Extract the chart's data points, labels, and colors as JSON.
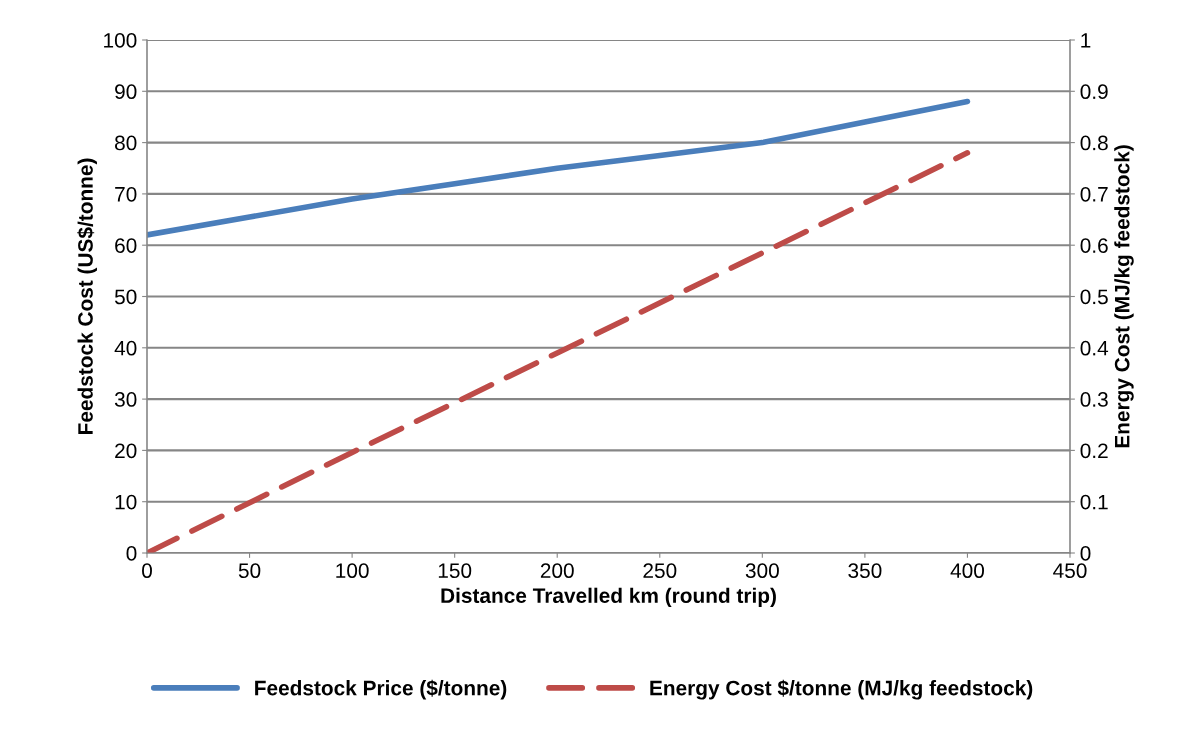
{
  "chart_data": {
    "type": "line",
    "xlabel": "Distance Travelled km (round trip)",
    "ylabel": "Feedstock Cost (US$/tonne)",
    "y2label": "Energy Cost (MJ/kg feedstock)",
    "series": [
      {
        "name": "Feedstock Price ($/tonne)",
        "color": "#4a7ebb",
        "x": [
          0,
          50,
          100,
          150,
          200,
          250,
          300,
          350,
          400
        ],
        "values": [
          62,
          65.5,
          69,
          72,
          75,
          77.5,
          80,
          84,
          88
        ],
        "line_style": "solid"
      },
      {
        "name": "Energy Cost $/tonne (MJ/kg feedstock)",
        "color": "#be4b48",
        "x": [
          0,
          100,
          200,
          300,
          400
        ],
        "values": [
          0,
          0.196,
          0.39,
          0.585,
          0.78
        ],
        "axis": "y2",
        "line_style": "dashed"
      }
    ],
    "xlim": [
      0,
      450
    ],
    "xticks": [
      0,
      50,
      100,
      150,
      200,
      250,
      300,
      350,
      400,
      450
    ],
    "ylim": [
      0,
      100
    ],
    "yticks": [
      0,
      10,
      20,
      30,
      40,
      50,
      60,
      70,
      80,
      90,
      100
    ],
    "y2lim": [
      0,
      1
    ],
    "y2ticks": [
      0,
      0.1,
      0.2,
      0.3,
      0.4,
      0.5,
      0.6,
      0.7,
      0.8,
      0.9,
      1
    ],
    "grid": "y",
    "legend": "bottom"
  }
}
